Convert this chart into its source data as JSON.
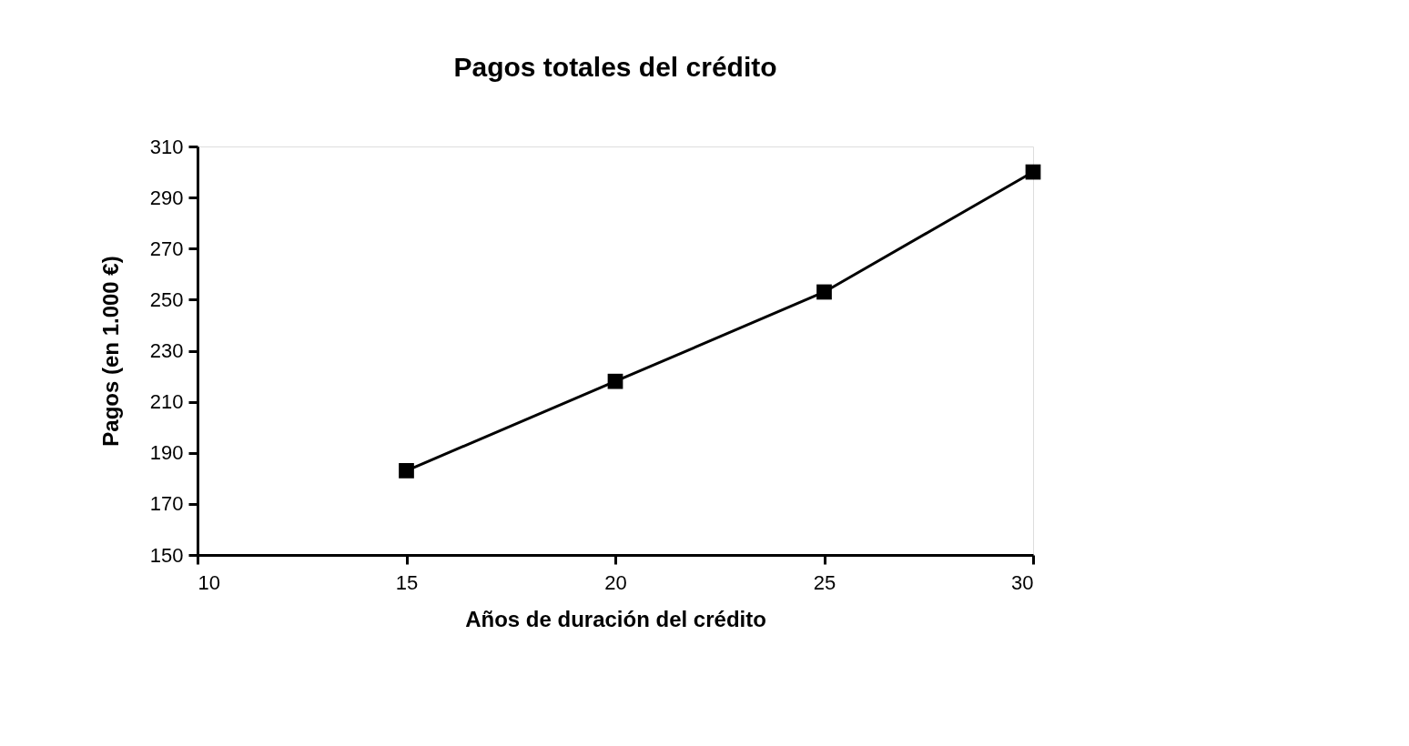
{
  "chart_data": {
    "type": "line",
    "title": "Pagos totales del crédito",
    "xlabel": "Años de duración del crédito",
    "ylabel": "Pagos (en 1.000 €)",
    "x": [
      15,
      20,
      25,
      30
    ],
    "series": [
      {
        "color": "#000000",
        "values": [
          183,
          218,
          253,
          300
        ]
      }
    ],
    "xlim": [
      10,
      30
    ],
    "xticks": [
      10,
      15,
      20,
      25,
      30
    ],
    "ylim": [
      150,
      310
    ],
    "yticks": [
      150,
      170,
      190,
      210,
      230,
      250,
      270,
      290,
      310
    ],
    "grid": false,
    "legend": false,
    "marker": "square",
    "line_style": "solid"
  }
}
